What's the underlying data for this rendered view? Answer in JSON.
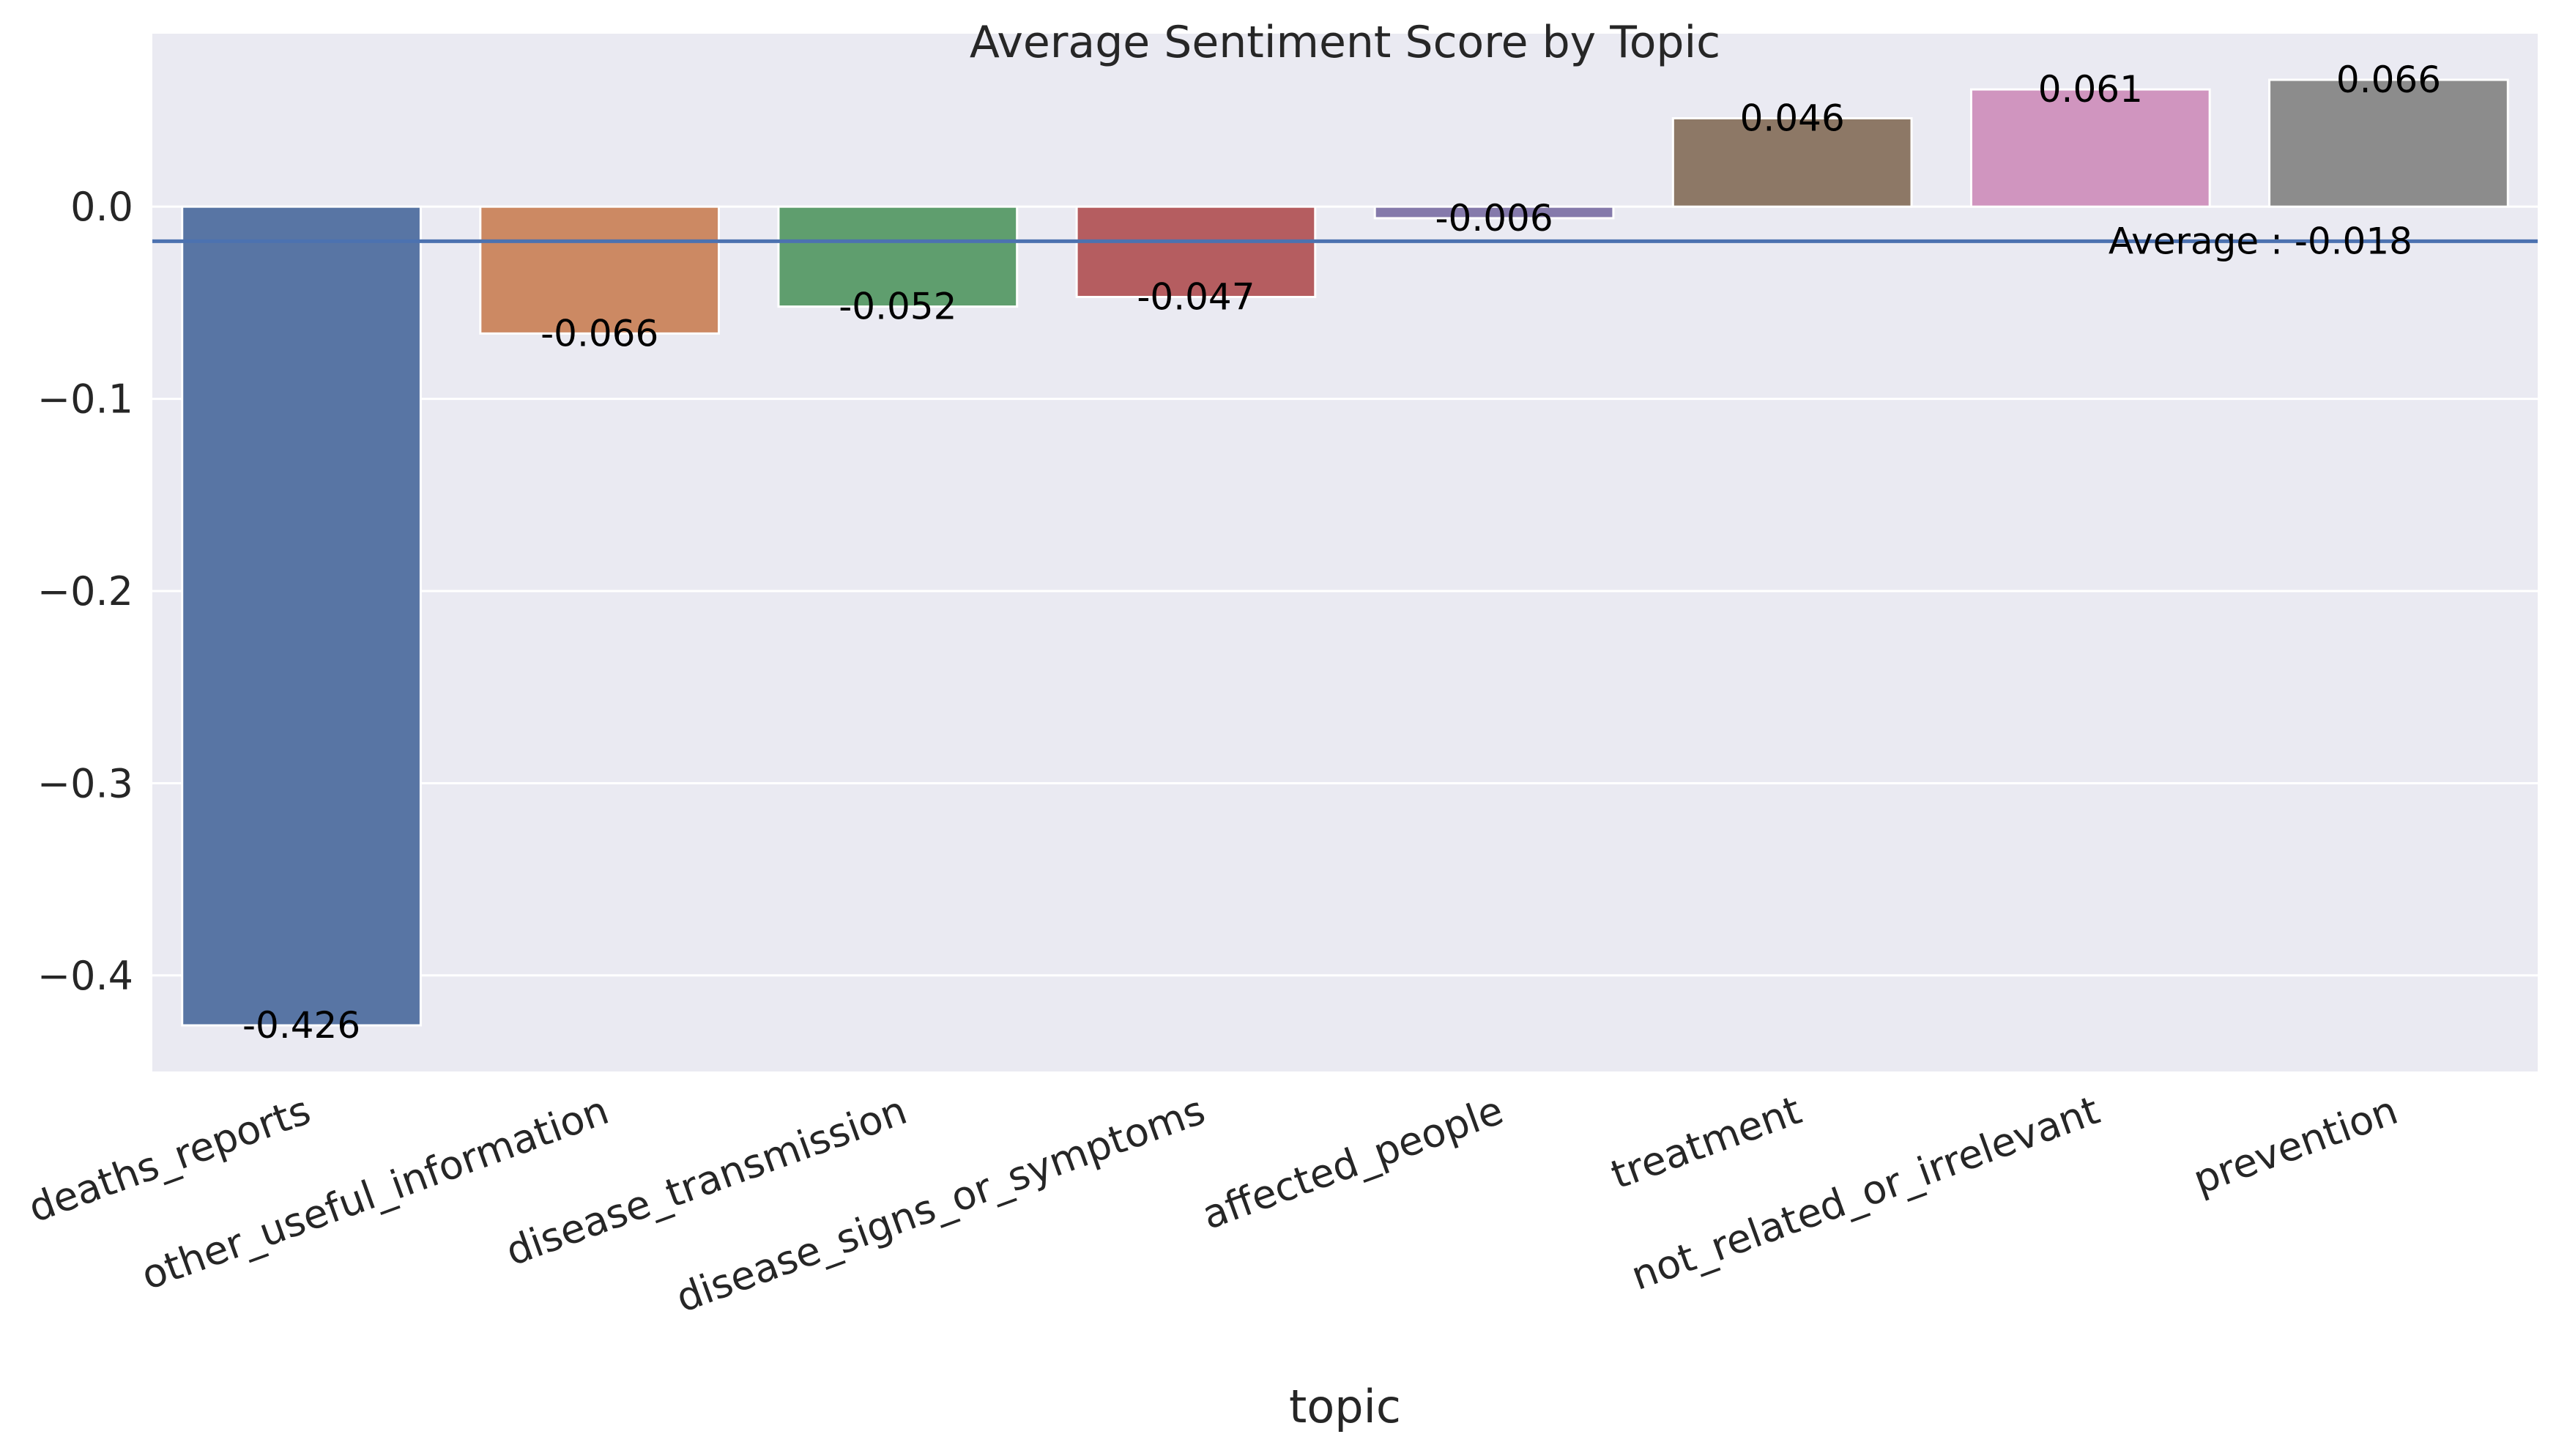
{
  "chart_data": {
    "type": "bar",
    "title": "Average Sentiment Score by Topic",
    "xlabel": "topic",
    "ylabel": "",
    "categories": [
      "deaths_reports",
      "other_useful_information",
      "disease_transmission",
      "disease_signs_or_symptoms",
      "affected_people",
      "treatment",
      "not_related_or_irrelevant",
      "prevention"
    ],
    "values": [
      -0.426,
      -0.066,
      -0.052,
      -0.047,
      -0.006,
      0.046,
      0.061,
      0.066
    ],
    "value_labels": [
      "-0.426",
      "-0.066",
      "-0.052",
      "-0.047",
      "-0.006",
      "0.046",
      "0.061",
      "0.066"
    ],
    "colors": [
      "#5875a4",
      "#cc8963",
      "#5f9e6e",
      "#b55d60",
      "#857aab",
      "#8d7866",
      "#d095bf",
      "#8c8c8c"
    ],
    "ylim": [
      -0.45,
      0.09
    ],
    "yticks": [
      0.0,
      -0.1,
      -0.2,
      -0.3,
      -0.4
    ],
    "ytick_labels": [
      "0.0",
      "−0.1",
      "−0.2",
      "−0.3",
      "−0.4"
    ],
    "grid": true,
    "reference_line": {
      "value": -0.018,
      "label": "Average : -0.018",
      "color": "#4c72b0"
    },
    "background_color": "#eaeaf2"
  }
}
